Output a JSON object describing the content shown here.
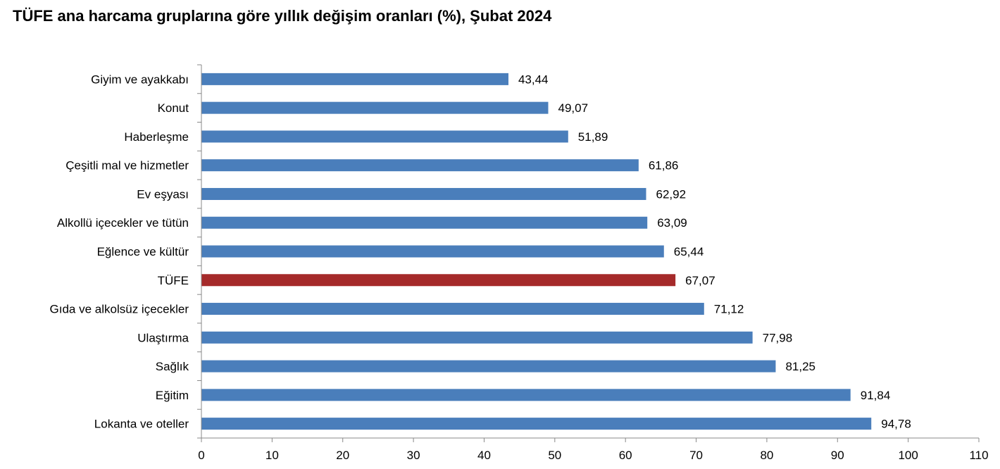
{
  "chart_data": {
    "type": "bar",
    "orientation": "horizontal",
    "title": "TÜFE ana harcama gruplarına göre yıllık değişim oranları (%), Şubat 2024",
    "categories": [
      "Giyim ve ayakkabı",
      "Konut",
      "Haberleşme",
      "Çeşitli mal ve hizmetler",
      "Ev eşyası",
      "Alkollü içecekler ve tütün",
      "Eğlence ve kültür",
      "TÜFE",
      "Gıda ve alkolsüz içecekler",
      "Ulaştırma",
      "Sağlık",
      "Eğitim",
      "Lokanta ve oteller"
    ],
    "values": [
      43.44,
      49.07,
      51.89,
      61.86,
      62.92,
      63.09,
      65.44,
      67.07,
      71.12,
      77.98,
      81.25,
      91.84,
      94.78
    ],
    "value_labels": [
      "43,44",
      "49,07",
      "51,89",
      "61,86",
      "62,92",
      "63,09",
      "65,44",
      "67,07",
      "71,12",
      "77,98",
      "81,25",
      "91,84",
      "94,78"
    ],
    "highlight": "TÜFE",
    "xlim": [
      0,
      110
    ],
    "xticks": [
      0,
      10,
      20,
      30,
      40,
      50,
      60,
      70,
      80,
      90,
      100,
      110
    ],
    "xlabel": "",
    "ylabel": "",
    "grid": false,
    "colors": {
      "bar": "#4a7ebb",
      "highlight": "#a52a2a"
    }
  }
}
